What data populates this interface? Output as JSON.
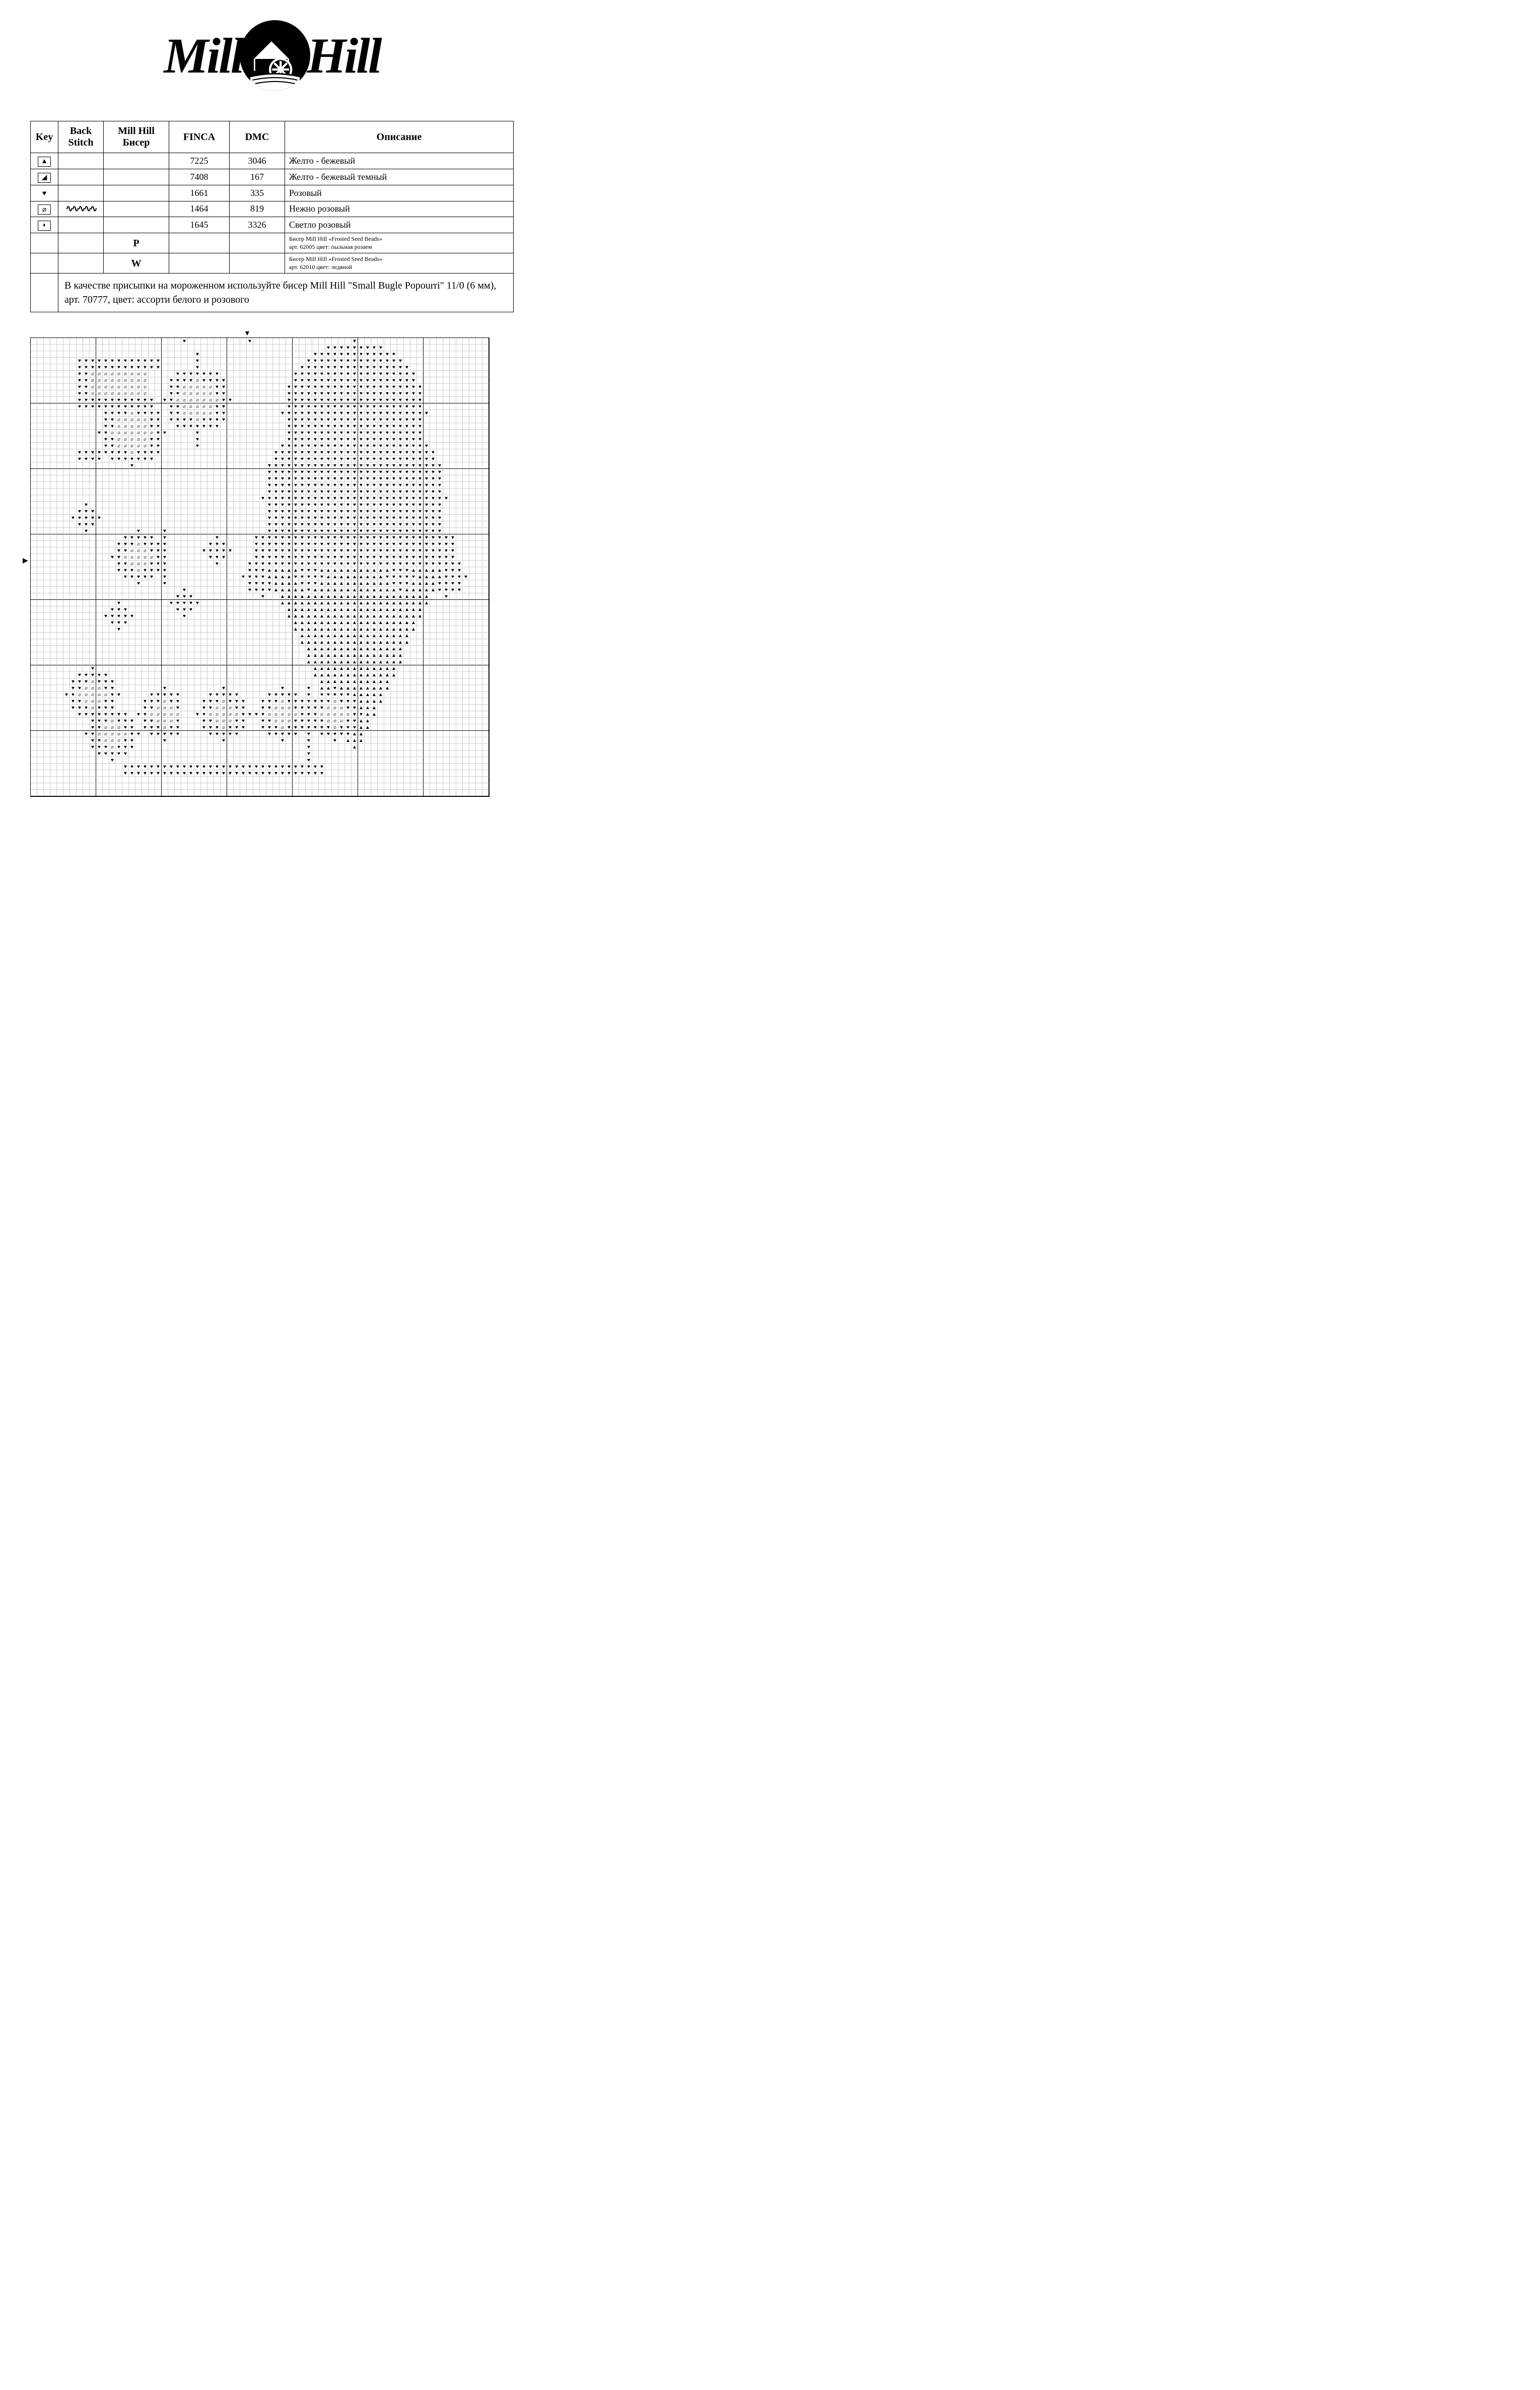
{
  "logo": {
    "left": "Mill",
    "right": "Hill"
  },
  "table": {
    "headers": {
      "key": "Key",
      "back": "Back Stitch",
      "mill_top": "Mill Hill",
      "mill_sub": "Бисер",
      "finca": "FINCA",
      "dmc": "DMC",
      "desc": "Описание"
    },
    "rows": [
      {
        "sym": "A-tri",
        "back": "",
        "mill": "",
        "finca": "7225",
        "dmc": "3046",
        "desc": "Желто - бежевый"
      },
      {
        "sym": "flag",
        "back": "",
        "mill": "",
        "finca": "7408",
        "dmc": "167",
        "desc": "Желто - бежевый темный"
      },
      {
        "sym": "heart",
        "back": "",
        "mill": "",
        "finca": "1661",
        "dmc": "335",
        "desc": "Розовый"
      },
      {
        "sym": "oval",
        "back": "wave",
        "mill": "",
        "finca": "1464",
        "dmc": "819",
        "desc": "Нежно розовый"
      },
      {
        "sym": "blob",
        "back": "",
        "mill": "",
        "finca": "1645",
        "dmc": "3326",
        "desc": "Светло розовый"
      }
    ],
    "bead_rows": [
      {
        "mill": "P",
        "desc_l1": "Бисер Mill Hill «Frosted Seed Beads»",
        "desc_l2": "арт. 62005 цвет: пыльная розаем"
      },
      {
        "mill": "W",
        "desc_l1": "Бисер Mill Hill «Frosted Seed Beads»",
        "desc_l2": "арт. 62010 цвет: ледяной"
      }
    ],
    "footnote": "В качестве присыпки на мороженном используйте бисер Mill Hill \"Small Bugle Popourri\" 11/0 (6 мм), арт. 70777, цвет: ассорти белого и розового"
  },
  "chart": {
    "cols": 70,
    "rows": 70,
    "symbols": {
      "h": "♥",
      "a": "▲",
      "o": "⌀",
      "f": "◢",
      "d": "●"
    },
    "arrow_top_col": 33,
    "arrow_left_row": 34
  }
}
